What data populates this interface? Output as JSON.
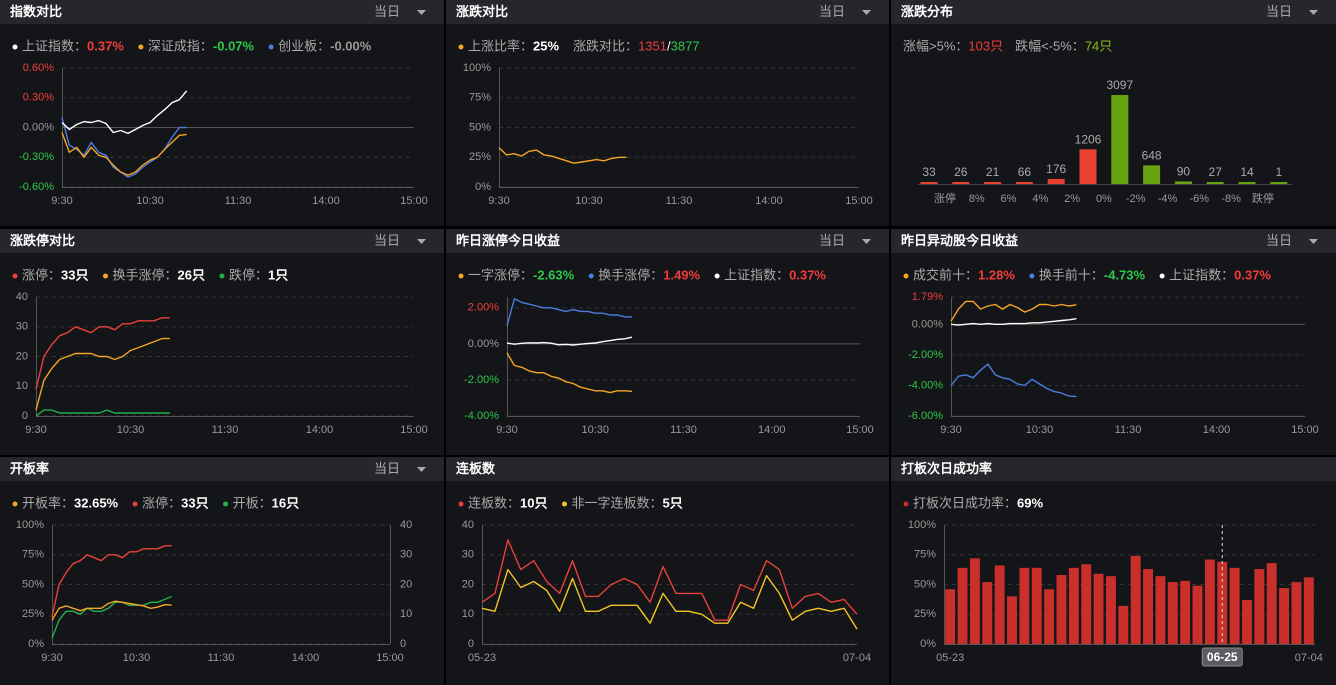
{
  "chart_data": [
    {
      "type": "line",
      "title": "指数对比",
      "dropdown": "当日",
      "x": [
        "9:30",
        "9:35",
        "9:40",
        "9:45",
        "9:50",
        "9:55",
        "10:00",
        "10:05",
        "10:10",
        "10:15",
        "10:20",
        "10:25",
        "10:30",
        "10:35",
        "10:40",
        "10:45",
        "10:50",
        "10:55"
      ],
      "xlim": [
        "9:30",
        "15:00"
      ],
      "xticks": [
        "9:30",
        "10:30",
        "11:30",
        "14:00",
        "15:00"
      ],
      "ylim": [
        -0.6,
        0.6
      ],
      "yticks": [
        {
          "value": 0.6,
          "label": "0.60%"
        },
        {
          "value": 0.3,
          "label": "0.30%"
        },
        {
          "value": 0,
          "label": "0.00%"
        },
        {
          "value": -0.3,
          "label": "-0.30%"
        },
        {
          "value": -0.6,
          "label": "-0.60%"
        }
      ],
      "tick_colors": {
        "positive": "#f23c3c",
        "negative": "#2ec84a",
        "zero": "#999999"
      },
      "grid": true,
      "series": [
        {
          "name": "上证指数：",
          "value_label": "0.37%",
          "value_color": "#f23c3c",
          "color": "#ffffff",
          "values": [
            0.05,
            -0.02,
            0.03,
            0.06,
            0.05,
            0.07,
            0.04,
            -0.05,
            -0.03,
            -0.06,
            -0.02,
            0.02,
            0.05,
            0.12,
            0.18,
            0.25,
            0.28,
            0.37
          ]
        },
        {
          "name": "深证成指：",
          "value_label": "-0.07%",
          "value_color": "#2ec84a",
          "color": "#f5a623",
          "values": [
            -0.05,
            -0.25,
            -0.2,
            -0.3,
            -0.2,
            -0.28,
            -0.3,
            -0.38,
            -0.45,
            -0.48,
            -0.45,
            -0.38,
            -0.33,
            -0.3,
            -0.22,
            -0.15,
            -0.08,
            -0.07
          ]
        },
        {
          "name": "创业板：",
          "value_label": "-0.00%",
          "value_color": "#999999",
          "color": "#4a7de0",
          "values": [
            0.1,
            -0.18,
            -0.22,
            -0.28,
            -0.15,
            -0.25,
            -0.28,
            -0.4,
            -0.45,
            -0.5,
            -0.47,
            -0.4,
            -0.35,
            -0.3,
            -0.22,
            -0.1,
            0.0,
            0.0
          ]
        }
      ]
    },
    {
      "type": "line",
      "title": "涨跌对比",
      "dropdown": "当日",
      "x": [
        "9:30",
        "9:35",
        "9:40",
        "9:45",
        "9:50",
        "9:55",
        "10:00",
        "10:05",
        "10:10",
        "10:15",
        "10:20",
        "10:25",
        "10:30",
        "10:35",
        "10:40",
        "10:45",
        "10:50",
        "10:55"
      ],
      "xlim": [
        "9:30",
        "15:00"
      ],
      "xticks": [
        "9:30",
        "10:30",
        "11:30",
        "14:00",
        "15:00"
      ],
      "ylim": [
        0,
        100
      ],
      "yticks": [
        {
          "value": 0,
          "label": "0%"
        },
        {
          "value": 25,
          "label": "25%"
        },
        {
          "value": 50,
          "label": "50%"
        },
        {
          "value": 75,
          "label": "75%"
        },
        {
          "value": 100,
          "label": "100%"
        }
      ],
      "grid": true,
      "series": [
        {
          "name": "上涨比率：",
          "value_label": "25%",
          "value_color": "#ffffff",
          "color": "#f5a623",
          "values": [
            33,
            27,
            28,
            26,
            30,
            31,
            27,
            26,
            24,
            22,
            20,
            21,
            22,
            23,
            22,
            24,
            25,
            25
          ]
        }
      ],
      "stats": [
        {
          "name": "涨跌对比：",
          "parts": [
            {
              "text": "1351",
              "color": "#f23c3c"
            },
            {
              "text": "/",
              "color": "#ffffff"
            },
            {
              "text": "3877",
              "color": "#2ec84a"
            }
          ]
        }
      ]
    },
    {
      "type": "distribution",
      "title": "涨跌分布",
      "dropdown": "当日",
      "values": [
        33,
        26,
        21,
        66,
        176,
        1206,
        3097,
        648,
        90,
        27,
        14,
        1
      ],
      "colors": [
        "#e8412f",
        "#e8412f",
        "#e8412f",
        "#e8412f",
        "#e8412f",
        "#e8412f",
        "#6aa312",
        "#6aa312",
        "#6aa312",
        "#6aa312",
        "#6aa312",
        "#6aa312"
      ],
      "boundaries": [
        "涨停",
        "8%",
        "6%",
        "4%",
        "2%",
        "0%",
        "-2%",
        "-4%",
        "-6%",
        "-8%",
        "跌停"
      ],
      "stats": [
        {
          "name": "涨幅>5%：",
          "parts": [
            {
              "text": "103只",
              "color": "#f23c3c"
            }
          ]
        },
        {
          "name": "跌幅<-5%：",
          "parts": [
            {
              "text": "74只",
              "color": "#8fb820"
            }
          ]
        }
      ]
    },
    {
      "type": "line",
      "title": "涨跌停对比",
      "dropdown": "当日",
      "x": [
        "9:30",
        "9:35",
        "9:40",
        "9:45",
        "9:50",
        "9:55",
        "10:00",
        "10:05",
        "10:10",
        "10:15",
        "10:20",
        "10:25",
        "10:30",
        "10:35",
        "10:40",
        "10:45",
        "10:50",
        "10:55"
      ],
      "xlim": [
        "9:30",
        "15:00"
      ],
      "xticks": [
        "9:30",
        "10:30",
        "11:30",
        "14:00",
        "15:00"
      ],
      "ylim": [
        0,
        40
      ],
      "yticks": [
        0,
        10,
        20,
        30,
        40
      ],
      "grid": true,
      "series": [
        {
          "name": "涨停：",
          "value_label": "33只",
          "value_color": "#ffffff",
          "color": "#e8413a",
          "values": [
            9,
            20,
            24,
            27,
            28,
            30,
            29,
            28,
            30,
            30,
            29,
            31,
            31,
            32,
            32,
            32,
            33,
            33
          ]
        },
        {
          "name": "换手涨停：",
          "value_label": "26只",
          "value_color": "#ffffff",
          "color": "#f5a623",
          "values": [
            2,
            12,
            16,
            19,
            20,
            21,
            21,
            21,
            20,
            20,
            19,
            20,
            22,
            23,
            24,
            25,
            26,
            26
          ]
        },
        {
          "name": "跌停：",
          "value_label": "1只",
          "value_color": "#ffffff",
          "color": "#22b14c",
          "values": [
            0,
            2,
            2,
            1,
            1,
            1,
            1,
            1,
            1,
            2,
            1,
            1,
            1,
            1,
            1,
            1,
            1,
            1
          ]
        }
      ]
    },
    {
      "type": "line",
      "title": "昨日涨停今日收益",
      "dropdown": "当日",
      "x": [
        "9:30",
        "9:35",
        "9:40",
        "9:45",
        "9:50",
        "9:55",
        "10:00",
        "10:05",
        "10:10",
        "10:15",
        "10:20",
        "10:25",
        "10:30",
        "10:35",
        "10:40",
        "10:45",
        "10:50",
        "10:55"
      ],
      "xlim": [
        "9:30",
        "15:00"
      ],
      "xticks": [
        "9:30",
        "10:30",
        "11:30",
        "14:00",
        "15:00"
      ],
      "ylim": [
        -4,
        2.6
      ],
      "yticks": [
        {
          "value": 2,
          "label": "2.00%"
        },
        {
          "value": 0,
          "label": "0.00%"
        },
        {
          "value": -2,
          "label": "-2.00%"
        },
        {
          "value": -4,
          "label": "-4.00%"
        }
      ],
      "tick_colors": {
        "positive": "#f23c3c",
        "negative": "#2ec84a",
        "zero": "#999999"
      },
      "grid": true,
      "series": [
        {
          "name": "一字涨停：",
          "value_label": "-2.63%",
          "value_color": "#2ec84a",
          "color": "#f5a623",
          "values": [
            -0.5,
            -1.2,
            -1.3,
            -1.5,
            -1.6,
            -1.6,
            -1.8,
            -1.9,
            -2.1,
            -2.2,
            -2.4,
            -2.5,
            -2.6,
            -2.6,
            -2.7,
            -2.6,
            -2.6,
            -2.63
          ]
        },
        {
          "name": "换手涨停：",
          "value_label": "1.49%",
          "value_color": "#f23c3c",
          "color": "#4a7de0",
          "values": [
            1.0,
            2.5,
            2.3,
            2.2,
            2.1,
            2.0,
            2.0,
            1.9,
            1.8,
            1.9,
            1.8,
            1.8,
            1.7,
            1.7,
            1.6,
            1.6,
            1.5,
            1.49
          ]
        },
        {
          "name": "上证指数：",
          "value_label": "0.37%",
          "value_color": "#f23c3c",
          "color": "#ffffff",
          "values": [
            0.05,
            -0.02,
            0.03,
            0.06,
            0.05,
            0.07,
            0.04,
            -0.05,
            -0.03,
            -0.06,
            -0.02,
            0.02,
            0.05,
            0.12,
            0.18,
            0.25,
            0.28,
            0.37
          ]
        }
      ]
    },
    {
      "type": "line",
      "title": "昨日异动股今日收益",
      "dropdown": "当日",
      "x": [
        "9:30",
        "9:35",
        "9:40",
        "9:45",
        "9:50",
        "9:55",
        "10:00",
        "10:05",
        "10:10",
        "10:15",
        "10:20",
        "10:25",
        "10:30",
        "10:35",
        "10:40",
        "10:45",
        "10:50",
        "10:55"
      ],
      "xlim": [
        "9:30",
        "15:00"
      ],
      "xticks": [
        "9:30",
        "10:30",
        "11:30",
        "14:00",
        "15:00"
      ],
      "ylim": [
        -6,
        1.79
      ],
      "yticks": [
        {
          "value": 1.79,
          "label": "1.79%"
        },
        {
          "value": 0,
          "label": "0.00%"
        },
        {
          "value": -2,
          "label": "-2.00%"
        },
        {
          "value": -4,
          "label": "-4.00%"
        },
        {
          "value": -6,
          "label": "-6.00%"
        }
      ],
      "tick_colors": {
        "positive": "#f23c3c",
        "negative": "#2ec84a",
        "zero": "#999999"
      },
      "grid": true,
      "series": [
        {
          "name": "成交前十：",
          "value_label": "1.28%",
          "value_color": "#f23c3c",
          "color": "#f5a623",
          "values": [
            0.2,
            1.0,
            1.5,
            1.5,
            1.0,
            1.2,
            1.3,
            1.0,
            1.3,
            1.1,
            0.8,
            1.0,
            1.3,
            1.3,
            1.2,
            1.3,
            1.2,
            1.28
          ]
        },
        {
          "name": "换手前十：",
          "value_label": "-4.73%",
          "value_color": "#2ec84a",
          "color": "#4a7de0",
          "values": [
            -4.0,
            -3.4,
            -3.3,
            -3.5,
            -3.0,
            -2.6,
            -3.3,
            -3.5,
            -3.6,
            -3.9,
            -4.0,
            -3.6,
            -3.9,
            -4.2,
            -4.4,
            -4.5,
            -4.7,
            -4.73
          ]
        },
        {
          "name": "上证指数：",
          "value_label": "0.37%",
          "value_color": "#f23c3c",
          "color": "#ffffff",
          "values": [
            0.0,
            -0.05,
            0.0,
            0.05,
            0.0,
            0.05,
            0.0,
            0.0,
            0.05,
            0.05,
            0.05,
            0.1,
            0.1,
            0.15,
            0.2,
            0.25,
            0.3,
            0.37
          ]
        }
      ]
    },
    {
      "type": "line",
      "title": "开板率",
      "dropdown": "当日",
      "x": [
        "9:30",
        "9:35",
        "9:40",
        "9:45",
        "9:50",
        "9:55",
        "10:00",
        "10:05",
        "10:10",
        "10:15",
        "10:20",
        "10:25",
        "10:30",
        "10:35",
        "10:40",
        "10:45",
        "10:50",
        "10:55"
      ],
      "xlim": [
        "9:30",
        "15:00"
      ],
      "xticks": [
        "9:30",
        "10:30",
        "11:30",
        "14:00",
        "15:00"
      ],
      "ylim": [
        0,
        100
      ],
      "yticks": [
        {
          "value": 0,
          "label": "0%"
        },
        {
          "value": 25,
          "label": "25%"
        },
        {
          "value": 50,
          "label": "50%"
        },
        {
          "value": 75,
          "label": "75%"
        },
        {
          "value": 100,
          "label": "100%"
        }
      ],
      "y2lim": [
        0,
        40
      ],
      "y2ticks": [
        0,
        10,
        20,
        30,
        40
      ],
      "grid": true,
      "series": [
        {
          "name": "开板率：",
          "value_label": "32.65%",
          "value_color": "#ffffff",
          "color": "#f5a623",
          "values": [
            20,
            30,
            32,
            30,
            28,
            30,
            30,
            30,
            34,
            36,
            35,
            34,
            33,
            32,
            30,
            31,
            33,
            32.65
          ]
        },
        {
          "name": "涨停：",
          "value_label": "33只",
          "value_color": "#ffffff",
          "color": "#e8413a",
          "axis": "y2",
          "values": [
            9,
            20,
            24,
            27,
            28,
            30,
            29,
            28,
            30,
            30,
            29,
            31,
            31,
            32,
            32,
            32,
            33,
            33
          ]
        },
        {
          "name": "开板：",
          "value_label": "16只",
          "value_color": "#ffffff",
          "color": "#22b14c",
          "axis": "y2",
          "values": [
            2,
            8,
            11,
            11,
            10,
            12,
            11,
            11,
            12,
            14,
            14,
            13,
            13,
            13,
            14,
            14,
            15,
            16
          ]
        }
      ]
    },
    {
      "type": "line",
      "title": "连板数",
      "categories": [
        "05-23",
        null,
        null,
        null,
        null,
        null,
        null,
        null,
        null,
        null,
        null,
        null,
        null,
        null,
        null,
        null,
        null,
        null,
        null,
        null,
        null,
        null,
        null,
        null,
        null,
        null,
        null,
        null,
        null,
        "07-04"
      ],
      "ylim": [
        0,
        40
      ],
      "yticks": [
        0,
        10,
        20,
        30,
        40
      ],
      "grid": true,
      "series": [
        {
          "name": "连板数：",
          "value_label": "10只",
          "value_color": "#ffffff",
          "color": "#e8413a",
          "values": [
            14,
            17,
            35,
            25,
            28,
            21,
            17,
            28,
            16,
            16,
            20,
            22,
            20,
            14,
            26,
            17,
            17,
            17,
            8,
            8,
            20,
            18,
            28,
            25,
            12,
            16,
            17,
            14,
            15,
            10
          ]
        },
        {
          "name": "非一字连板数：",
          "value_label": "5只",
          "value_color": "#ffffff",
          "color": "#f5c623",
          "values": [
            12,
            11,
            25,
            19,
            21,
            18,
            11,
            22,
            11,
            11,
            13,
            13,
            13,
            7,
            17,
            11,
            11,
            10,
            7,
            7,
            14,
            12,
            23,
            17,
            8,
            11,
            12,
            11,
            12,
            5
          ]
        }
      ]
    },
    {
      "type": "bar",
      "title": "打板次日成功率",
      "categories": [
        "05-23",
        null,
        null,
        null,
        null,
        null,
        null,
        null,
        null,
        null,
        null,
        null,
        null,
        null,
        null,
        null,
        null,
        null,
        null,
        null,
        null,
        null,
        "06-25",
        null,
        null,
        null,
        null,
        null,
        null,
        "07-04"
      ],
      "ylim": [
        0,
        100
      ],
      "yticks": [
        {
          "value": 0,
          "label": "0%"
        },
        {
          "value": 25,
          "label": "25%"
        },
        {
          "value": 50,
          "label": "50%"
        },
        {
          "value": 75,
          "label": "75%"
        },
        {
          "value": 100,
          "label": "100%"
        }
      ],
      "grid": true,
      "series": [
        {
          "name": "打板次日成功率：",
          "value_label": "69%",
          "value_color": "#ffffff",
          "color": "#c9302c",
          "values": [
            46,
            64,
            72,
            52,
            66,
            40,
            64,
            64,
            46,
            58,
            64,
            67,
            59,
            57,
            32,
            74,
            63,
            57,
            52,
            53,
            49,
            71,
            69,
            64,
            37,
            63,
            68,
            47,
            52,
            56
          ]
        }
      ]
    }
  ]
}
